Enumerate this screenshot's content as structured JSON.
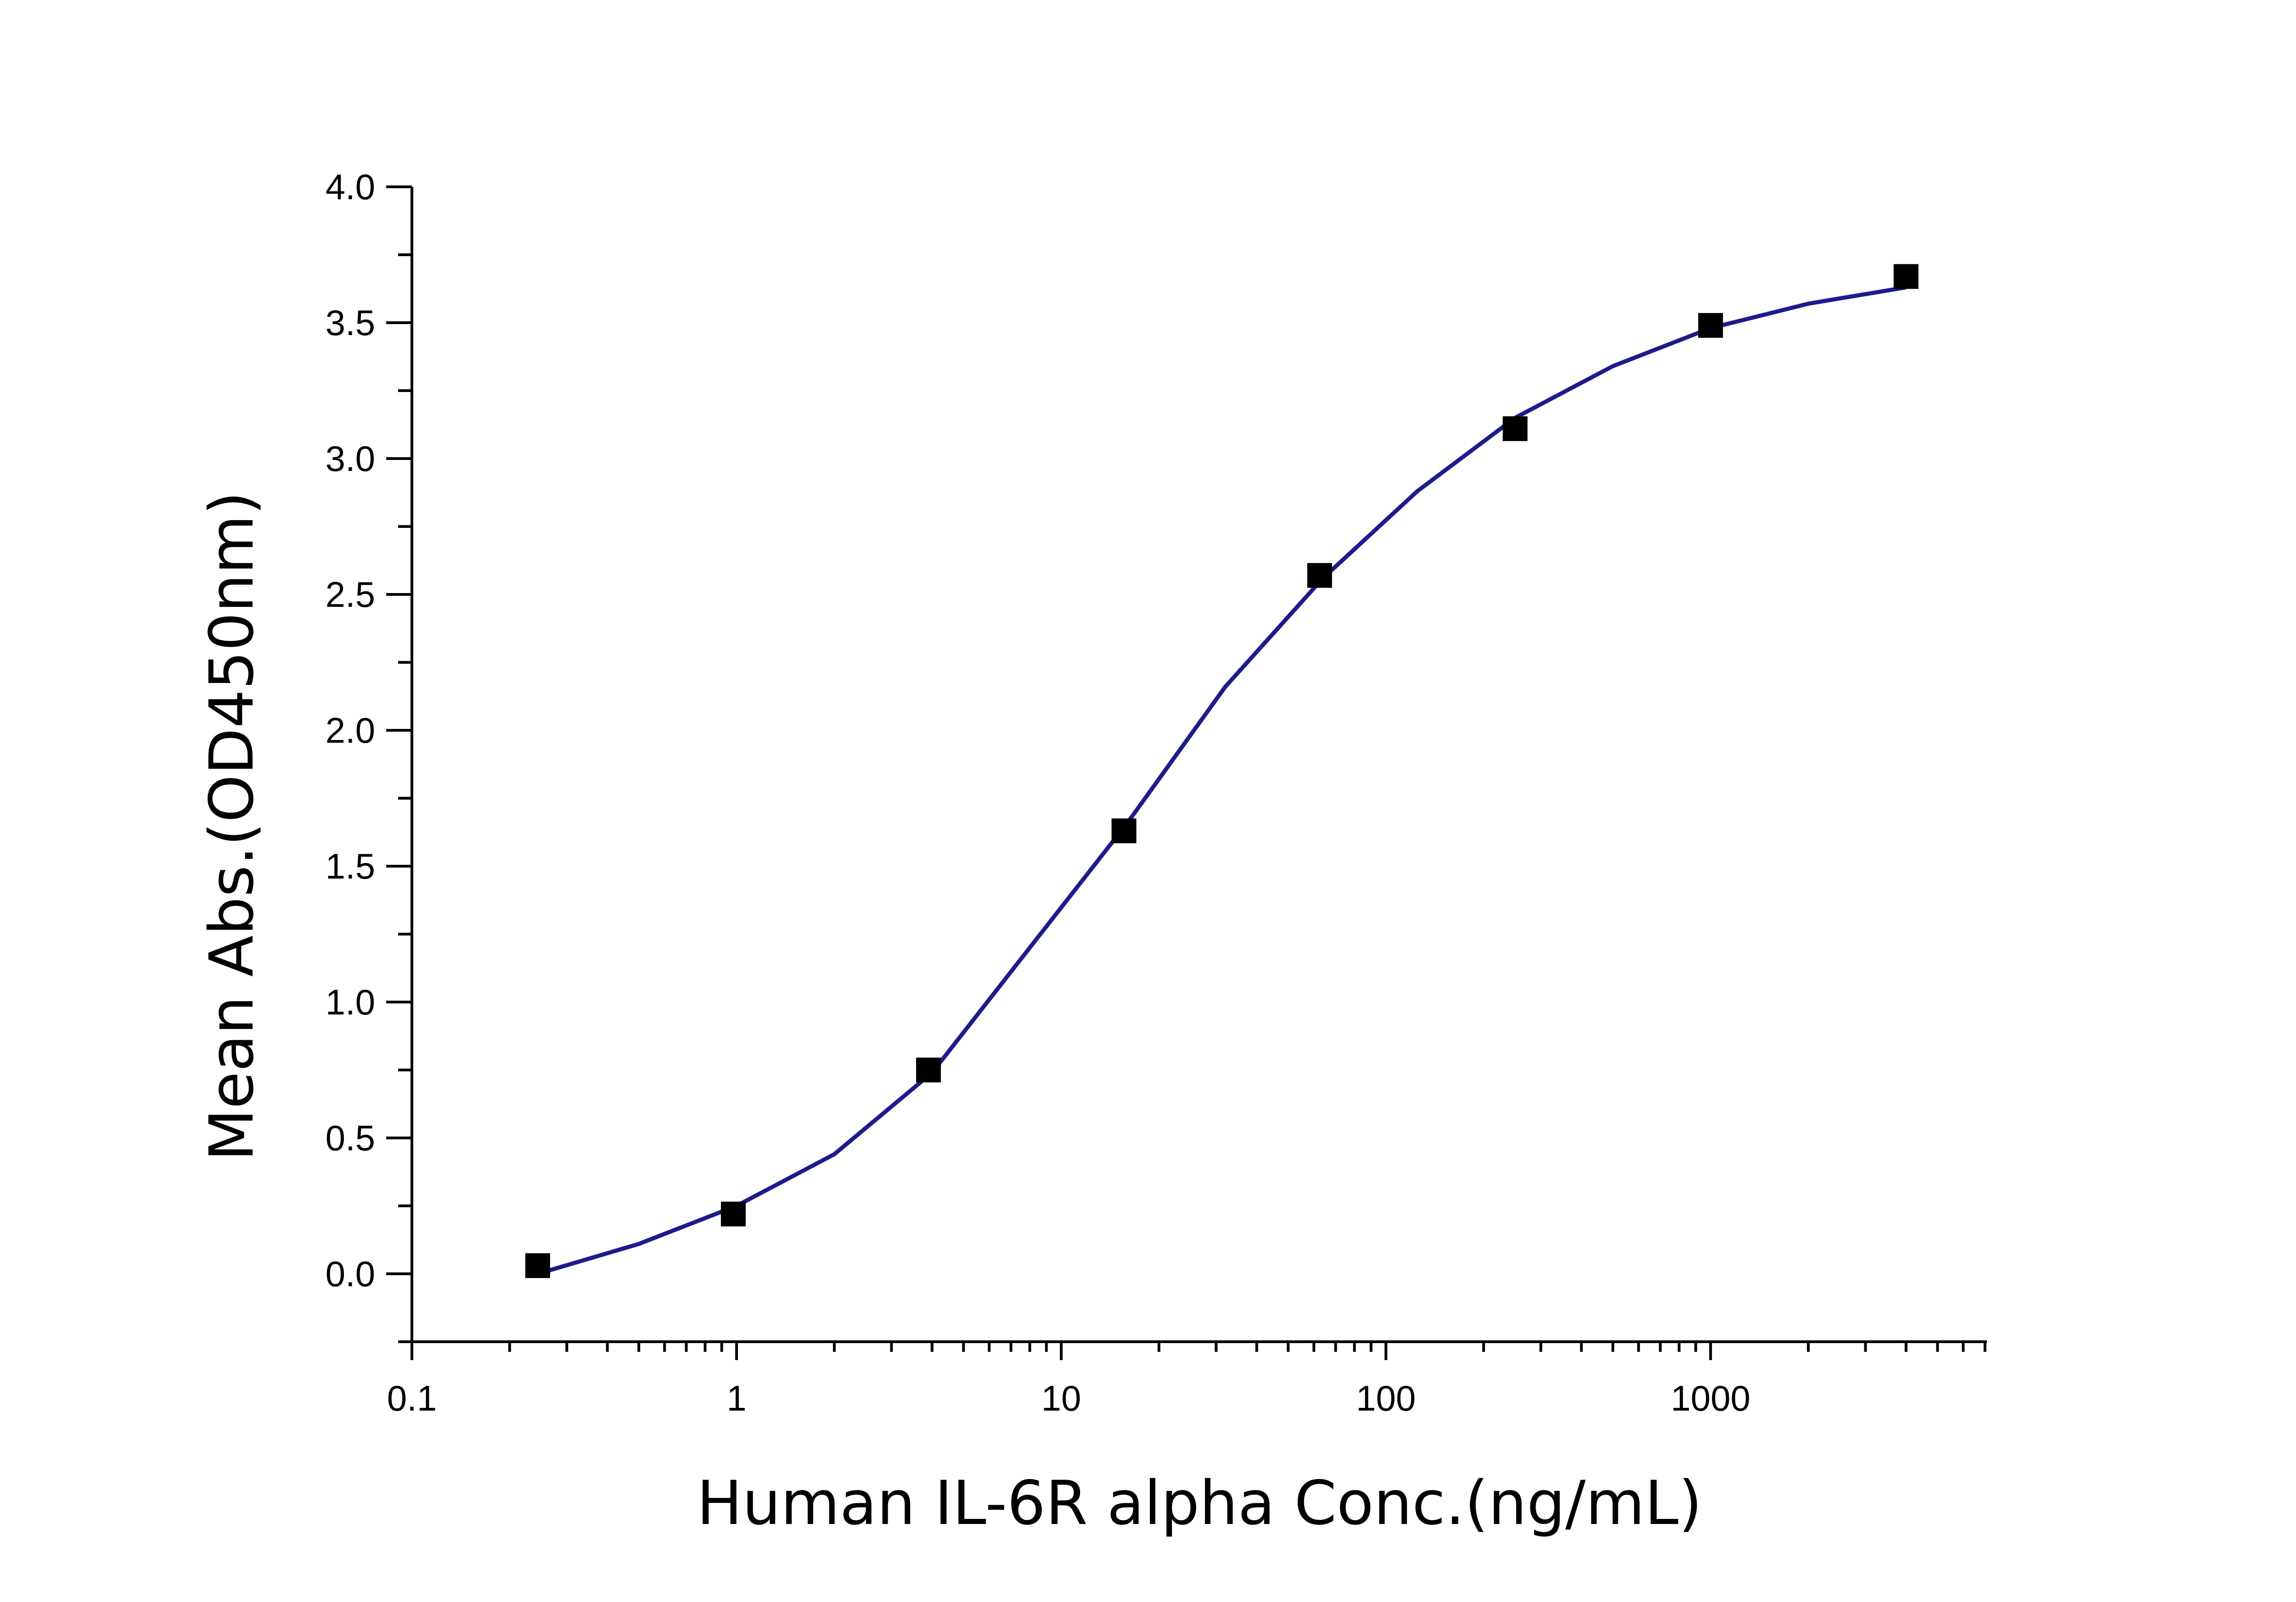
{
  "chart_data": {
    "type": "scatter",
    "x_label": "Human IL-6R alpha Conc.(ng/mL)",
    "y_label": "Mean Abs.(OD450nm)",
    "xscale": "log",
    "x": [
      0.244,
      0.977,
      3.9,
      15.6,
      62.5,
      250,
      1000,
      4000
    ],
    "series": [
      {
        "color": "#000000",
        "marker": "square",
        "values": [
          0.03,
          0.22,
          0.75,
          1.63,
          2.57,
          3.11,
          3.49,
          3.67
        ]
      }
    ],
    "fit": {
      "color": "#1c1c8c",
      "x": [
        0.244,
        0.5,
        1,
        2,
        4,
        8,
        16,
        32,
        64,
        125,
        250,
        500,
        1000,
        2000,
        4000
      ],
      "values": [
        0.0,
        0.11,
        0.25,
        0.44,
        0.74,
        1.2,
        1.66,
        2.16,
        2.56,
        2.88,
        3.15,
        3.34,
        3.48,
        3.57,
        3.63
      ]
    },
    "xlim": [
      0.1,
      7100
    ],
    "ylim": [
      -0.25,
      4.0
    ],
    "xticks": [
      0.1,
      1,
      10,
      100,
      1000
    ],
    "yticks": [
      {
        "value": 0,
        "label": "0.0"
      },
      0.5,
      {
        "value": 1,
        "label": "1.0"
      },
      1.5,
      {
        "value": 2,
        "label": "2.0"
      },
      2.5,
      {
        "value": 3,
        "label": "3.0"
      },
      3.5,
      {
        "value": 4,
        "label": "4.0"
      }
    ]
  }
}
